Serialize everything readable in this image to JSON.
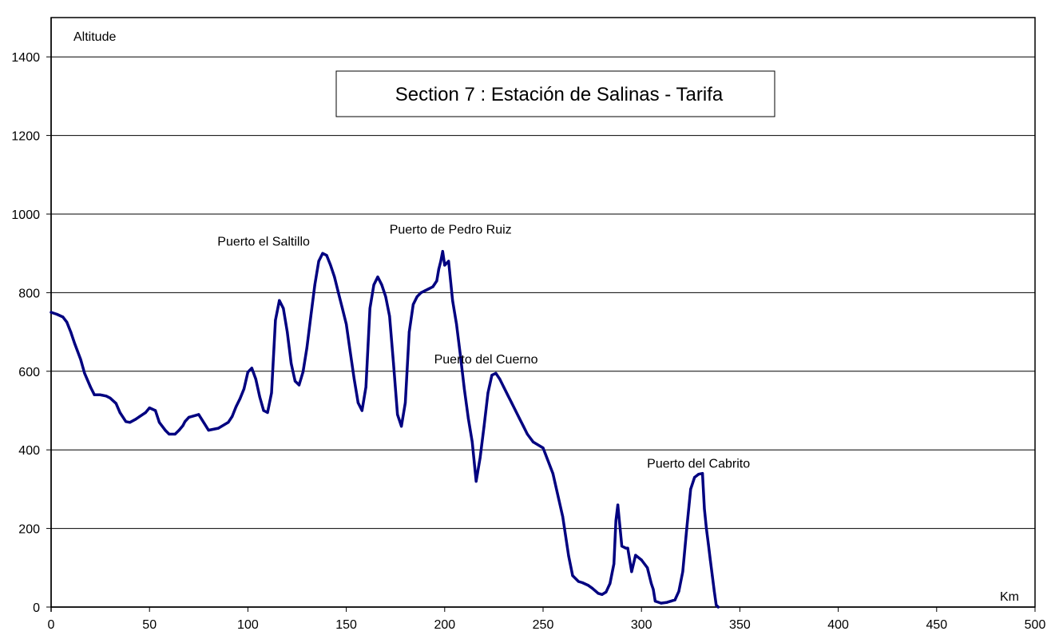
{
  "chart_data": {
    "type": "line",
    "title": "Section 7 : Estación de Salinas - Tarifa",
    "xlabel": "Km",
    "ylabel": "Altitude",
    "xlim": [
      0,
      500
    ],
    "ylim": [
      0,
      1500
    ],
    "x_ticks": [
      0,
      50,
      100,
      150,
      200,
      250,
      300,
      350,
      400,
      450,
      500
    ],
    "y_ticks": [
      0,
      200,
      400,
      600,
      800,
      1000,
      1200,
      1400
    ],
    "grid": "horizontal",
    "line_color": "#000080",
    "annotations": [
      {
        "text": "Puerto el Saltillo",
        "x": 108,
        "y": 920
      },
      {
        "text": "Puerto de Pedro Ruiz",
        "x": 203,
        "y": 950
      },
      {
        "text": "Puerto del Cuerno",
        "x": 221,
        "y": 620
      },
      {
        "text": "Puerto del Cabrito",
        "x": 329,
        "y": 355
      }
    ],
    "series": [
      {
        "x": [
          0,
          3,
          6,
          8,
          10,
          12,
          15,
          17,
          20,
          22,
          25,
          28,
          30,
          33,
          35,
          38,
          40,
          43,
          45,
          48,
          50,
          53,
          55,
          58,
          60,
          63,
          65,
          67,
          68,
          70,
          75,
          80,
          85,
          90,
          92,
          94,
          96,
          98,
          100,
          102,
          104,
          106,
          108,
          110,
          112,
          114,
          116,
          118,
          120,
          122,
          124,
          126,
          128,
          130,
          132,
          134,
          136,
          138,
          140,
          142,
          144,
          146,
          148,
          150,
          152,
          154,
          156,
          158,
          160,
          162,
          164,
          166,
          168,
          170,
          172,
          174,
          176,
          178,
          180,
          182,
          184,
          186,
          188,
          190,
          192,
          194,
          196,
          197,
          198,
          199,
          200,
          202,
          204,
          206,
          208,
          210,
          212,
          214,
          216,
          218,
          220,
          222,
          224,
          226,
          228,
          230,
          232,
          234,
          236,
          238,
          240,
          242,
          245,
          250,
          255,
          260,
          263,
          265,
          268,
          270,
          273,
          275,
          278,
          280,
          282,
          284,
          286,
          287,
          288,
          290,
          292,
          293,
          295,
          297,
          300,
          303,
          305,
          306,
          307,
          310,
          313,
          315,
          317,
          319,
          321,
          323,
          325,
          327,
          329,
          331,
          332,
          333,
          334,
          335,
          336,
          337,
          338,
          339
        ],
        "values": [
          750,
          745,
          738,
          725,
          700,
          670,
          630,
          595,
          560,
          540,
          540,
          537,
          532,
          518,
          495,
          472,
          470,
          478,
          485,
          495,
          507,
          500,
          470,
          450,
          440,
          440,
          450,
          462,
          472,
          483,
          490,
          450,
          455,
          470,
          485,
          510,
          530,
          555,
          598,
          608,
          580,
          535,
          500,
          495,
          545,
          730,
          780,
          760,
          700,
          620,
          575,
          565,
          598,
          660,
          740,
          820,
          880,
          900,
          895,
          870,
          840,
          800,
          760,
          720,
          650,
          580,
          520,
          500,
          560,
          760,
          820,
          840,
          820,
          790,
          740,
          620,
          490,
          460,
          520,
          700,
          770,
          790,
          800,
          805,
          810,
          815,
          830,
          860,
          880,
          905,
          870,
          880,
          780,
          720,
          640,
          555,
          480,
          420,
          320,
          380,
          460,
          545,
          590,
          595,
          580,
          560,
          540,
          520,
          500,
          480,
          460,
          440,
          420,
          405,
          340,
          230,
          130,
          80,
          65,
          62,
          55,
          48,
          35,
          32,
          38,
          60,
          110,
          220,
          260,
          155,
          150,
          150,
          90,
          132,
          120,
          100,
          60,
          45,
          15,
          10,
          12,
          15,
          18,
          40,
          90,
          200,
          300,
          330,
          338,
          340,
          250,
          200,
          160,
          120,
          80,
          40,
          5,
          0
        ]
      }
    ]
  }
}
